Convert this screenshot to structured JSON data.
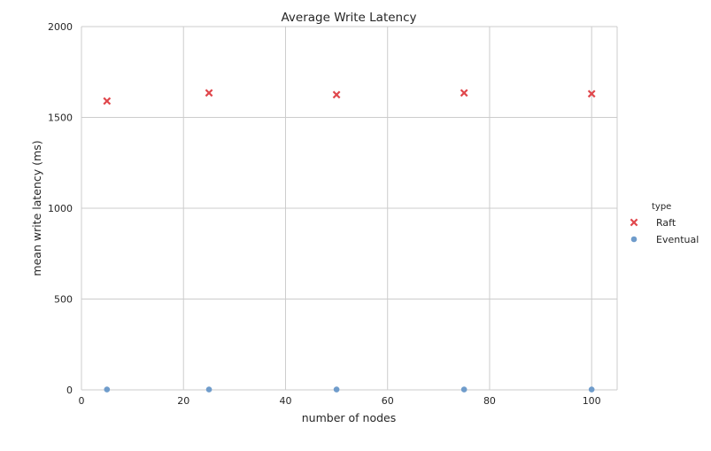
{
  "chart_data": {
    "type": "scatter",
    "title": "Average Write Latency",
    "xlabel": "number of nodes",
    "ylabel": "mean write latency (ms)",
    "xlim": [
      0,
      105
    ],
    "ylim": [
      0,
      2000
    ],
    "xticks": [
      0,
      20,
      40,
      60,
      80,
      100
    ],
    "yticks": [
      0,
      500,
      1000,
      1500,
      2000
    ],
    "grid": true,
    "legend": {
      "title": "type",
      "placement": "right"
    },
    "series": [
      {
        "name": "Raft",
        "marker": "x",
        "color": "#e0474c",
        "x": [
          5,
          25,
          50,
          75,
          100
        ],
        "y": [
          1590,
          1635,
          1625,
          1635,
          1630
        ]
      },
      {
        "name": "Eventual",
        "marker": "circle",
        "color": "#6f9ccb",
        "x": [
          5,
          25,
          50,
          75,
          100
        ],
        "y": [
          2,
          2,
          2,
          2,
          2
        ]
      }
    ]
  }
}
